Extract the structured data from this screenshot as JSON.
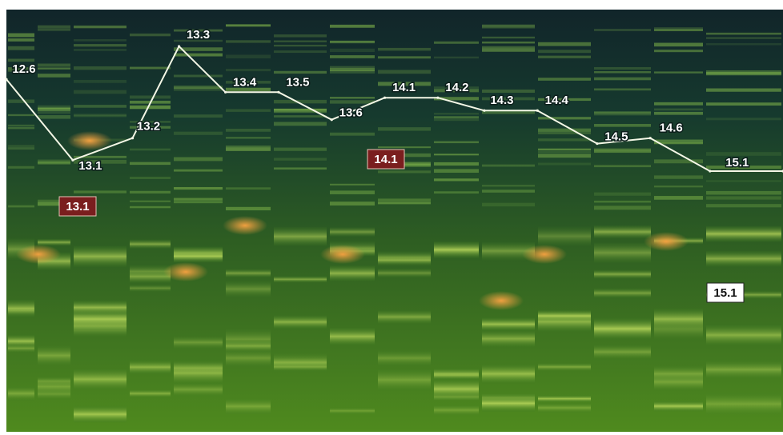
{
  "chart_data": {
    "type": "line",
    "title": "",
    "xlabel": "",
    "ylabel": "",
    "description_colors": {
      "background_dark": "#12282a",
      "band_green": "#5a9a2a",
      "band_yellow": "#cfe06a",
      "hot_orange": "#e2943a",
      "line": "#f4f7e6",
      "label_text": "#ffffff",
      "box_red": "#7a1e1e",
      "box_white": "#ffffff"
    },
    "points": [
      {
        "label": "12.6",
        "x": 0.0,
        "y": 0.62
      },
      {
        "label": "13.1",
        "x": 1.0,
        "y": 0.18
      },
      {
        "label": "13.2",
        "x": 1.9,
        "y": 0.3
      },
      {
        "label": "13.3",
        "x": 2.6,
        "y": 0.8
      },
      {
        "label": "13.4",
        "x": 3.3,
        "y": 0.55
      },
      {
        "label": "13.5",
        "x": 4.1,
        "y": 0.55
      },
      {
        "label": "13.6",
        "x": 4.9,
        "y": 0.4
      },
      {
        "label": "14.1",
        "x": 5.7,
        "y": 0.52
      },
      {
        "label": "14.2",
        "x": 6.5,
        "y": 0.52
      },
      {
        "label": "14.3",
        "x": 7.2,
        "y": 0.45
      },
      {
        "label": "14.4",
        "x": 8.0,
        "y": 0.45
      },
      {
        "label": "14.5",
        "x": 8.9,
        "y": 0.27
      },
      {
        "label": "14.6",
        "x": 9.7,
        "y": 0.3
      },
      {
        "label": "15.1",
        "x": 10.6,
        "y": 0.12
      },
      {
        "label": "",
        "x": 11.7,
        "y": 0.12
      }
    ],
    "boxed_labels": [
      {
        "label": "13.1",
        "style": "red",
        "anchor_index": 1
      },
      {
        "label": "14.1",
        "style": "red",
        "anchor_index": 7
      },
      {
        "label": "15.1",
        "style": "white",
        "anchor_index": 13
      }
    ],
    "xlim": [
      0,
      11.7
    ],
    "ylim": [
      -1.3,
      1.0
    ],
    "grid": false,
    "legend": "none"
  }
}
